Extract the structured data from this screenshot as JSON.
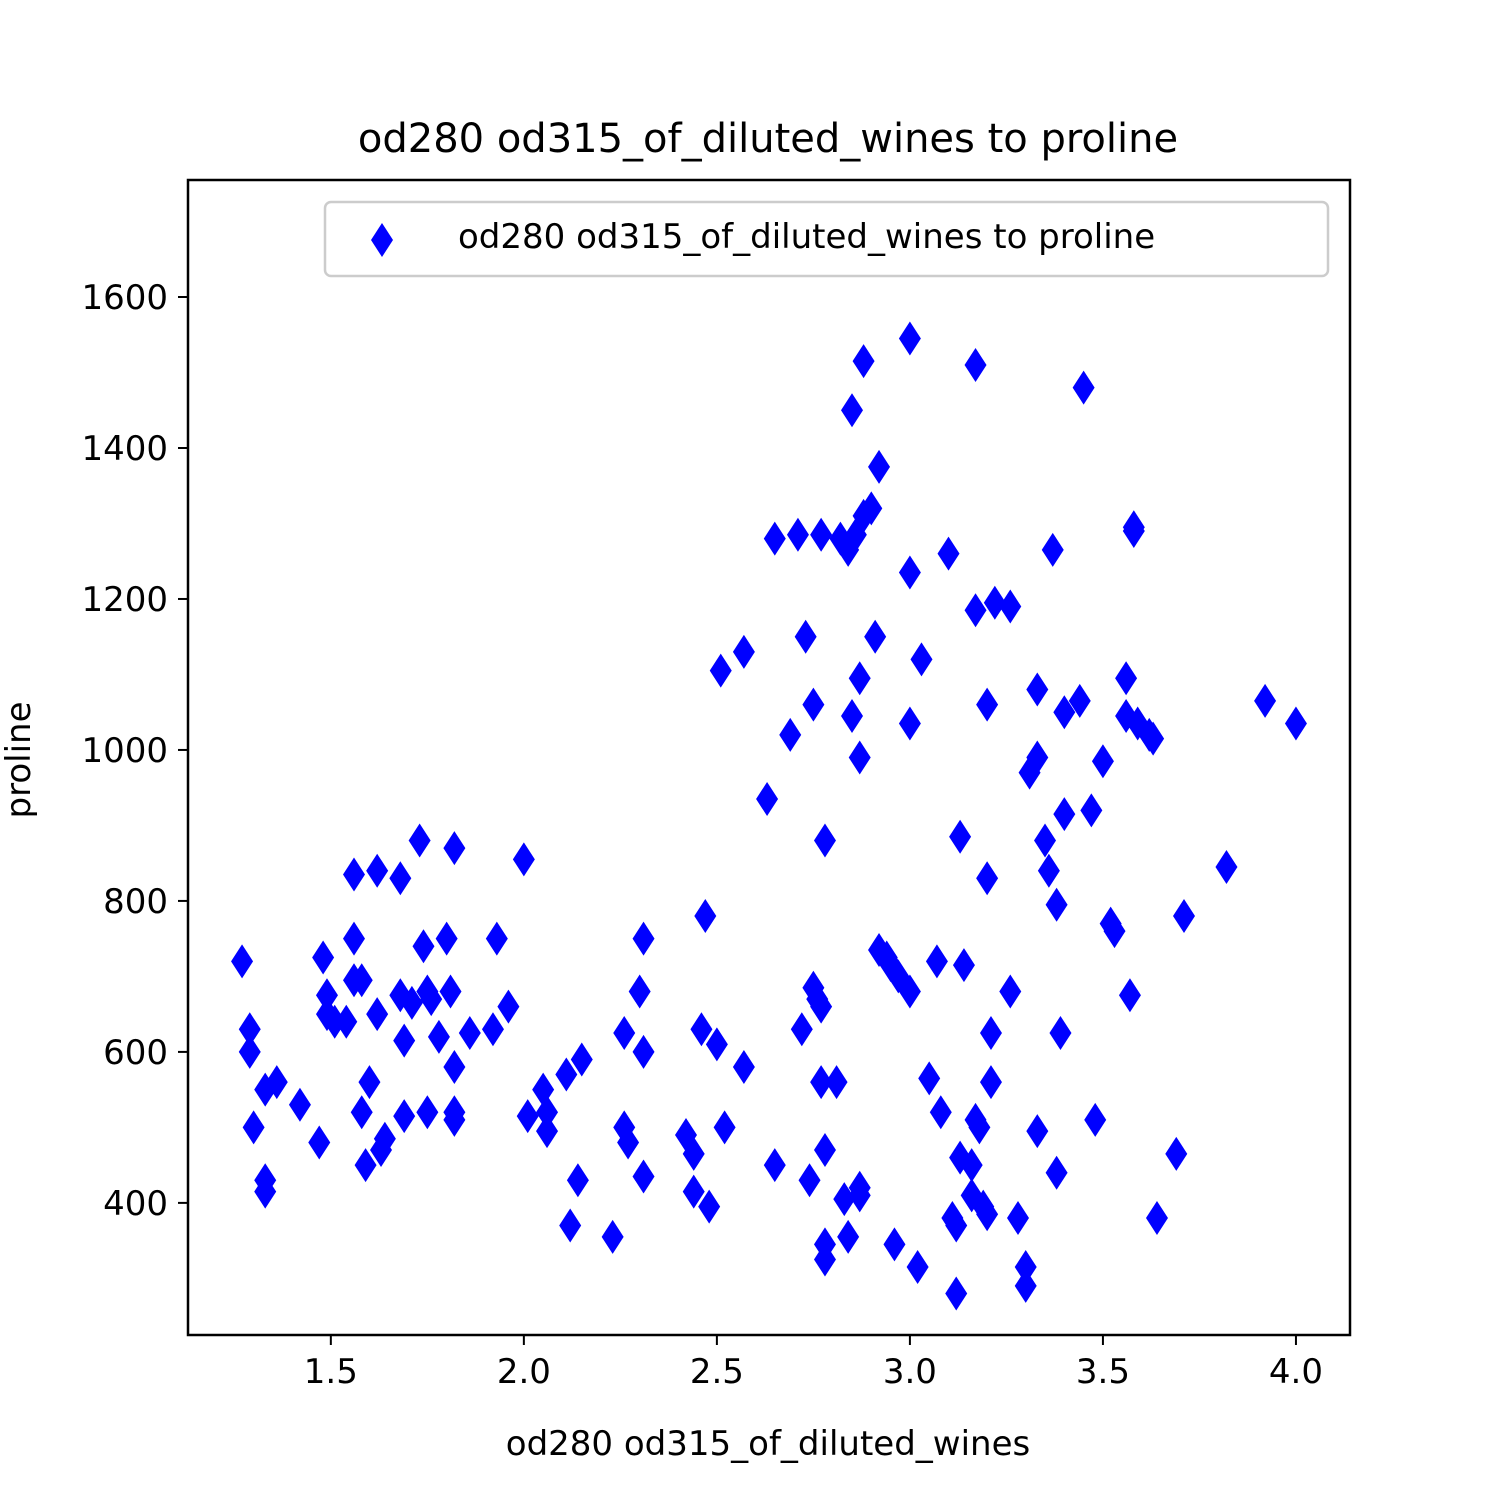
{
  "chart_data": {
    "type": "scatter",
    "title": "od280 od315_of_diluted_wines to proline",
    "xlabel": "od280 od315_of_diluted_wines",
    "ylabel": "proline",
    "xlim": [
      1.13,
      4.14
    ],
    "ylim": [
      225,
      1755
    ],
    "xticks": [
      1.5,
      2.0,
      2.5,
      3.0,
      3.5,
      4.0
    ],
    "xtick_labels": [
      "1.5",
      "2.0",
      "2.5",
      "3.0",
      "3.5",
      "4.0"
    ],
    "yticks": [
      400,
      600,
      800,
      1000,
      1200,
      1400,
      1600
    ],
    "ytick_labels": [
      "400",
      "600",
      "800",
      "1000",
      "1200",
      "1400",
      "1600"
    ],
    "grid": false,
    "legend": {
      "position": "top-right",
      "entries": [
        "od280 od315_of_diluted_wines to proline"
      ]
    },
    "marker": "thin_diamond",
    "color": "#0000ff",
    "series": [
      {
        "name": "od280 od315_of_diluted_wines to proline",
        "points": [
          [
            1.27,
            720
          ],
          [
            1.29,
            630
          ],
          [
            1.29,
            600
          ],
          [
            1.3,
            500
          ],
          [
            1.33,
            550
          ],
          [
            1.33,
            430
          ],
          [
            1.33,
            415
          ],
          [
            1.36,
            560
          ],
          [
            1.42,
            530
          ],
          [
            1.47,
            480
          ],
          [
            1.48,
            725
          ],
          [
            1.49,
            675
          ],
          [
            1.49,
            650
          ],
          [
            1.51,
            640
          ],
          [
            1.54,
            640
          ],
          [
            1.56,
            835
          ],
          [
            1.56,
            750
          ],
          [
            1.56,
            695
          ],
          [
            1.58,
            695
          ],
          [
            1.58,
            520
          ],
          [
            1.59,
            450
          ],
          [
            1.6,
            560
          ],
          [
            1.62,
            840
          ],
          [
            1.62,
            650
          ],
          [
            1.63,
            470
          ],
          [
            1.64,
            485
          ],
          [
            1.68,
            830
          ],
          [
            1.68,
            675
          ],
          [
            1.69,
            615
          ],
          [
            1.69,
            515
          ],
          [
            1.71,
            665
          ],
          [
            1.73,
            880
          ],
          [
            1.74,
            740
          ],
          [
            1.75,
            680
          ],
          [
            1.75,
            520
          ],
          [
            1.76,
            670
          ],
          [
            1.78,
            620
          ],
          [
            1.8,
            750
          ],
          [
            1.81,
            680
          ],
          [
            1.82,
            870
          ],
          [
            1.82,
            580
          ],
          [
            1.82,
            520
          ],
          [
            1.82,
            510
          ],
          [
            1.86,
            625
          ],
          [
            1.92,
            630
          ],
          [
            1.93,
            750
          ],
          [
            1.96,
            660
          ],
          [
            2.0,
            855
          ],
          [
            2.01,
            515
          ],
          [
            2.05,
            550
          ],
          [
            2.06,
            520
          ],
          [
            2.06,
            495
          ],
          [
            2.11,
            570
          ],
          [
            2.12,
            370
          ],
          [
            2.14,
            430
          ],
          [
            2.15,
            590
          ],
          [
            2.23,
            355
          ],
          [
            2.26,
            625
          ],
          [
            2.26,
            500
          ],
          [
            2.27,
            480
          ],
          [
            2.3,
            680
          ],
          [
            2.31,
            750
          ],
          [
            2.31,
            600
          ],
          [
            2.31,
            435
          ],
          [
            2.42,
            490
          ],
          [
            2.44,
            465
          ],
          [
            2.44,
            415
          ],
          [
            2.46,
            630
          ],
          [
            2.47,
            780
          ],
          [
            2.48,
            395
          ],
          [
            2.5,
            610
          ],
          [
            2.51,
            1105
          ],
          [
            2.52,
            500
          ],
          [
            2.57,
            1130
          ],
          [
            2.57,
            580
          ],
          [
            2.63,
            935
          ],
          [
            2.65,
            1280
          ],
          [
            2.65,
            450
          ],
          [
            2.69,
            1020
          ],
          [
            2.71,
            1285
          ],
          [
            2.72,
            630
          ],
          [
            2.73,
            1150
          ],
          [
            2.74,
            430
          ],
          [
            2.75,
            1060
          ],
          [
            2.75,
            685
          ],
          [
            2.76,
            670
          ],
          [
            2.77,
            660
          ],
          [
            2.77,
            1285
          ],
          [
            2.77,
            560
          ],
          [
            2.78,
            880
          ],
          [
            2.78,
            470
          ],
          [
            2.78,
            345
          ],
          [
            2.78,
            325
          ],
          [
            2.81,
            560
          ],
          [
            2.82,
            1280
          ],
          [
            2.83,
            405
          ],
          [
            2.84,
            1265
          ],
          [
            2.84,
            355
          ],
          [
            2.85,
            1450
          ],
          [
            2.85,
            1045
          ],
          [
            2.86,
            1285
          ],
          [
            2.87,
            1095
          ],
          [
            2.87,
            990
          ],
          [
            2.87,
            420
          ],
          [
            2.87,
            410
          ],
          [
            2.88,
            1515
          ],
          [
            2.88,
            1310
          ],
          [
            2.9,
            1320
          ],
          [
            2.91,
            1150
          ],
          [
            2.92,
            1375
          ],
          [
            2.92,
            735
          ],
          [
            2.94,
            725
          ],
          [
            2.95,
            715
          ],
          [
            2.96,
            345
          ],
          [
            2.97,
            700
          ],
          [
            3.0,
            1235
          ],
          [
            3.0,
            1035
          ],
          [
            3.0,
            680
          ],
          [
            3.0,
            1545
          ],
          [
            3.02,
            315
          ],
          [
            3.03,
            1120
          ],
          [
            3.05,
            565
          ],
          [
            3.07,
            720
          ],
          [
            3.08,
            520
          ],
          [
            3.1,
            1260
          ],
          [
            3.11,
            380
          ],
          [
            3.12,
            370
          ],
          [
            3.12,
            280
          ],
          [
            3.13,
            885
          ],
          [
            3.13,
            460
          ],
          [
            3.14,
            715
          ],
          [
            3.16,
            450
          ],
          [
            3.16,
            410
          ],
          [
            3.17,
            1510
          ],
          [
            3.17,
            1185
          ],
          [
            3.17,
            510
          ],
          [
            3.18,
            500
          ],
          [
            3.19,
            395
          ],
          [
            3.2,
            1060
          ],
          [
            3.2,
            830
          ],
          [
            3.2,
            385
          ],
          [
            3.21,
            625
          ],
          [
            3.21,
            560
          ],
          [
            3.22,
            1195
          ],
          [
            3.26,
            1190
          ],
          [
            3.26,
            680
          ],
          [
            3.28,
            380
          ],
          [
            3.3,
            315
          ],
          [
            3.3,
            290
          ],
          [
            3.31,
            970
          ],
          [
            3.33,
            990
          ],
          [
            3.33,
            1080
          ],
          [
            3.33,
            495
          ],
          [
            3.35,
            880
          ],
          [
            3.36,
            840
          ],
          [
            3.37,
            1265
          ],
          [
            3.38,
            795
          ],
          [
            3.38,
            440
          ],
          [
            3.39,
            625
          ],
          [
            3.4,
            1050
          ],
          [
            3.4,
            915
          ],
          [
            3.44,
            1065
          ],
          [
            3.45,
            1480
          ],
          [
            3.47,
            920
          ],
          [
            3.48,
            510
          ],
          [
            3.5,
            985
          ],
          [
            3.52,
            770
          ],
          [
            3.53,
            760
          ],
          [
            3.56,
            1045
          ],
          [
            3.56,
            1095
          ],
          [
            3.57,
            675
          ],
          [
            3.58,
            1295
          ],
          [
            3.58,
            1290
          ],
          [
            3.59,
            1035
          ],
          [
            3.62,
            1020
          ],
          [
            3.63,
            1015
          ],
          [
            3.64,
            380
          ],
          [
            3.69,
            465
          ],
          [
            3.71,
            780
          ],
          [
            3.82,
            845
          ],
          [
            3.92,
            1065
          ],
          [
            4.0,
            1035
          ]
        ]
      }
    ]
  }
}
